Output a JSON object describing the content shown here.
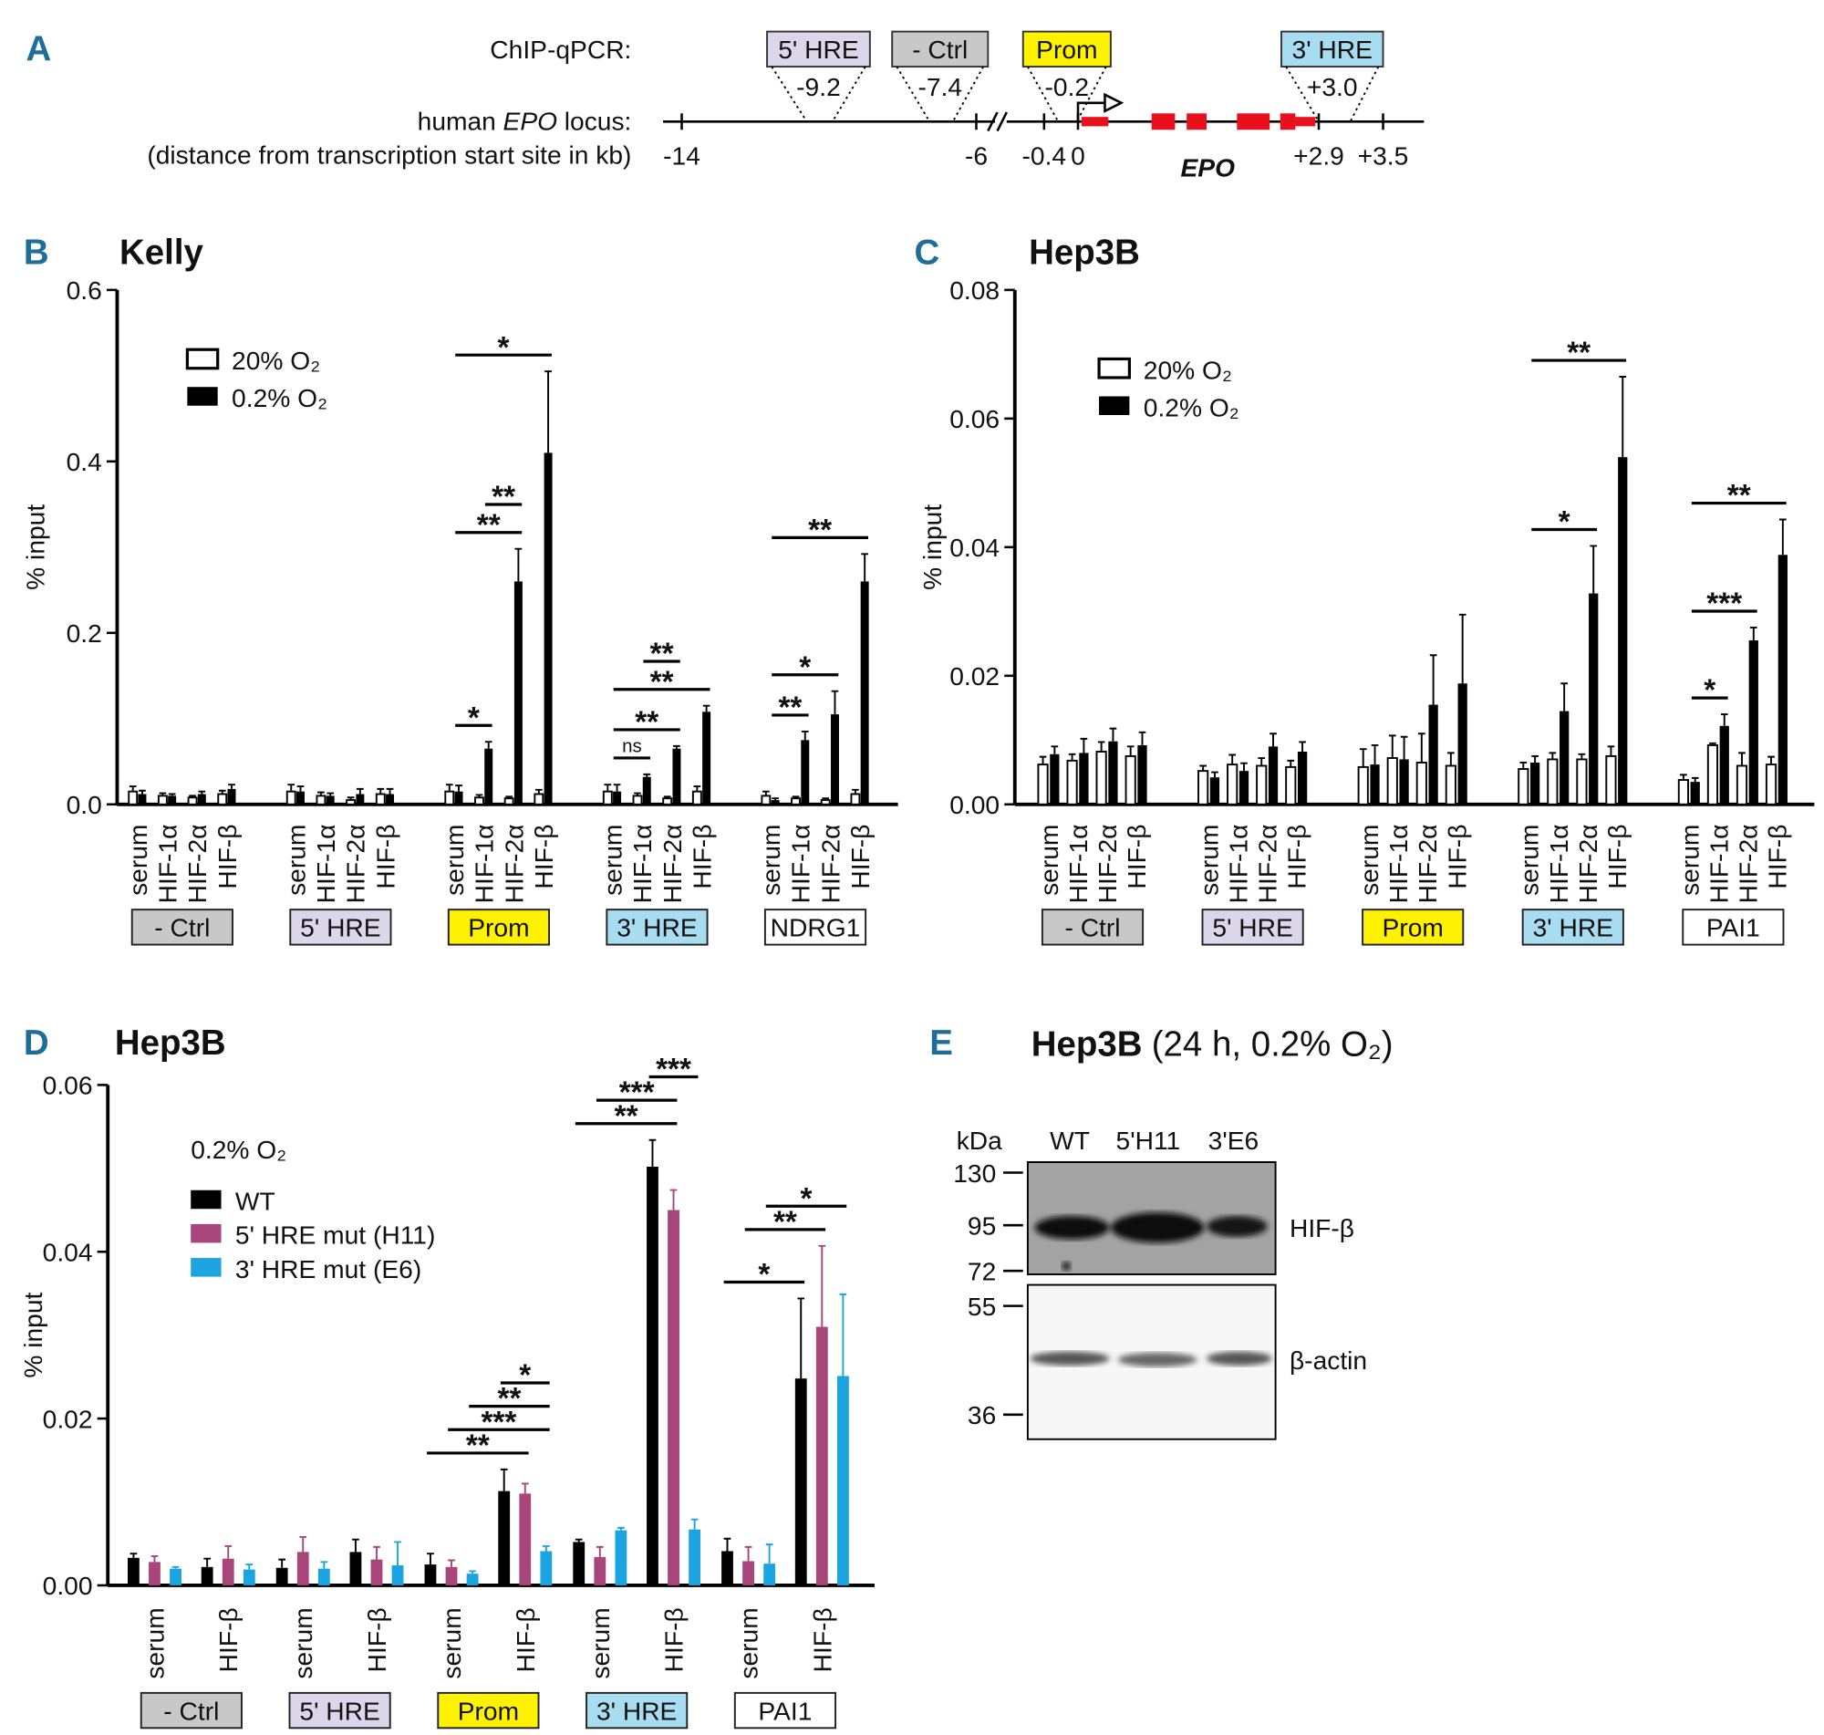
{
  "locus_diagram": {
    "panel": "A",
    "chip_label": "ChIP-qPCR:",
    "locus_label": [
      "human",
      "EPO",
      "locus:"
    ],
    "distance_label": "(distance from transcription start site in kb)",
    "gene": "EPO",
    "regions": [
      {
        "label": "5' HRE",
        "position": "-9.2",
        "color": "#dcd6ea"
      },
      {
        "label": "- Ctrl",
        "position": "-7.4",
        "color": "#c8c8c8"
      },
      {
        "label": "Prom",
        "position": "-0.2",
        "color": "#fff200"
      },
      {
        "label": "3' HRE",
        "position": "+3.0",
        "color": "#a8dcf0"
      }
    ],
    "ticks": [
      "-14",
      "-6",
      "-0.4",
      "0",
      "+2.9",
      "+3.5"
    ]
  },
  "chart_data": [
    {
      "type": "bar",
      "panel": "B",
      "title": "Kelly",
      "ylabel": "% input",
      "ylim": [
        0,
        0.6
      ],
      "yticks": [
        {
          "value": 0,
          "label": "0.0"
        },
        0.2,
        0.4,
        0.6
      ],
      "groups": [
        {
          "label": "- Ctrl",
          "color": "#c8c8c8"
        },
        {
          "label": "5' HRE",
          "color": "#dcd6ea"
        },
        {
          "label": "Prom",
          "color": "#fff200"
        },
        {
          "label": "3' HRE",
          "color": "#a8dcf0"
        },
        {
          "label": "NDRG1",
          "color": "#ffffff"
        }
      ],
      "categories": [
        "serum",
        "HIF-1α",
        "HIF-2α",
        "HIF-β",
        "serum",
        "HIF-1α",
        "HIF-2α",
        "HIF-β",
        "serum",
        "HIF-1α",
        "HIF-2α",
        "HIF-β",
        "serum",
        "HIF-1α",
        "HIF-2α",
        "HIF-β",
        "serum",
        "HIF-1α",
        "HIF-2α",
        "HIF-β"
      ],
      "series": [
        {
          "name": "20% O₂",
          "color": "#ffffff",
          "values": [
            0.015,
            0.01,
            0.008,
            0.012,
            0.015,
            0.01,
            0.005,
            0.012,
            0.015,
            0.008,
            0.007,
            0.012,
            0.015,
            0.01,
            0.007,
            0.015,
            0.01,
            0.007,
            0.005,
            0.012
          ],
          "errors": [
            0.006,
            0.003,
            0.002,
            0.004,
            0.008,
            0.004,
            0.003,
            0.006,
            0.008,
            0.003,
            0.002,
            0.005,
            0.008,
            0.003,
            0.002,
            0.006,
            0.005,
            0.002,
            0.002,
            0.005
          ]
        },
        {
          "name": "0.2% O₂",
          "color": "#000000",
          "values": [
            0.012,
            0.01,
            0.012,
            0.018,
            0.015,
            0.01,
            0.012,
            0.012,
            0.015,
            0.065,
            0.26,
            0.41,
            0.015,
            0.032,
            0.065,
            0.108,
            0.005,
            0.075,
            0.105,
            0.26
          ],
          "errors": [
            0.004,
            0.002,
            0.003,
            0.005,
            0.006,
            0.003,
            0.006,
            0.006,
            0.007,
            0.008,
            0.038,
            0.095,
            0.008,
            0.003,
            0.003,
            0.007,
            0.002,
            0.01,
            0.027,
            0.032
          ]
        }
      ],
      "significance": [
        {
          "label": "*",
          "group": 2,
          "bars": [
            1,
            3
          ]
        },
        {
          "label": "**",
          "group": 2,
          "bars": [
            1,
            5
          ]
        },
        {
          "label": "**",
          "group": 2,
          "bars": [
            3,
            5
          ]
        },
        {
          "label": "*",
          "group": 2,
          "bars": [
            1,
            7
          ]
        },
        {
          "label": "ns",
          "group": 3,
          "bars": [
            1,
            3
          ]
        },
        {
          "label": "**",
          "group": 3,
          "bars": [
            1,
            5
          ]
        },
        {
          "label": "**",
          "group": 3,
          "bars": [
            1,
            7
          ]
        },
        {
          "label": "**",
          "group": 3,
          "bars": [
            3,
            5
          ]
        },
        {
          "label": "**",
          "group": 4,
          "bars": [
            1,
            3
          ]
        },
        {
          "label": "*",
          "group": 4,
          "bars": [
            1,
            5
          ]
        },
        {
          "label": "**",
          "group": 4,
          "bars": [
            1,
            7
          ]
        }
      ]
    },
    {
      "type": "bar",
      "panel": "C",
      "title": "Hep3B",
      "ylabel": "% input",
      "ylim": [
        0,
        0.08
      ],
      "yticks": [
        {
          "value": 0,
          "label": "0.00"
        },
        0.02,
        0.04,
        0.06,
        0.08
      ],
      "groups": [
        {
          "label": "- Ctrl",
          "color": "#c8c8c8"
        },
        {
          "label": "5' HRE",
          "color": "#dcd6ea"
        },
        {
          "label": "Prom",
          "color": "#fff200"
        },
        {
          "label": "3' HRE",
          "color": "#a8dcf0"
        },
        {
          "label": "PAI1",
          "color": "#ffffff"
        }
      ],
      "categories": [
        "serum",
        "HIF-1α",
        "HIF-2α",
        "HIF-β",
        "serum",
        "HIF-1α",
        "HIF-2α",
        "HIF-β",
        "serum",
        "HIF-1α",
        "HIF-2α",
        "HIF-β",
        "serum",
        "HIF-1α",
        "HIF-2α",
        "HIF-β",
        "serum",
        "HIF-1α",
        "HIF-2α",
        "HIF-β"
      ],
      "series": [
        {
          "name": "20% O₂",
          "color": "#ffffff",
          "values": [
            0.0062,
            0.0068,
            0.0082,
            0.0075,
            0.0052,
            0.0062,
            0.006,
            0.0058,
            0.0058,
            0.0072,
            0.0065,
            0.006,
            0.0055,
            0.007,
            0.007,
            0.0075,
            0.0038,
            0.0092,
            0.006,
            0.0062
          ],
          "errors": [
            0.0012,
            0.001,
            0.0015,
            0.0015,
            0.0008,
            0.0015,
            0.0012,
            0.001,
            0.0028,
            0.0035,
            0.0045,
            0.002,
            0.001,
            0.001,
            0.0008,
            0.0015,
            0.0008,
            0.0003,
            0.002,
            0.0012
          ]
        },
        {
          "name": "0.2% O₂",
          "color": "#000000",
          "values": [
            0.0078,
            0.008,
            0.0098,
            0.0092,
            0.0042,
            0.0052,
            0.009,
            0.0082,
            0.0062,
            0.007,
            0.0155,
            0.0188,
            0.0065,
            0.0145,
            0.0328,
            0.054,
            0.0035,
            0.0122,
            0.0255,
            0.0388
          ],
          "errors": [
            0.0012,
            0.0022,
            0.002,
            0.002,
            0.0008,
            0.0012,
            0.002,
            0.0015,
            0.003,
            0.0035,
            0.0077,
            0.0107,
            0.001,
            0.0043,
            0.0074,
            0.0125,
            0.0006,
            0.0018,
            0.002,
            0.0055
          ]
        }
      ],
      "significance": [
        {
          "label": "*",
          "group": 3,
          "bars": [
            1,
            5
          ]
        },
        {
          "label": "**",
          "group": 3,
          "bars": [
            1,
            7
          ]
        },
        {
          "label": "*",
          "group": 4,
          "bars": [
            1,
            3
          ]
        },
        {
          "label": "***",
          "group": 4,
          "bars": [
            1,
            5
          ]
        },
        {
          "label": "**",
          "group": 4,
          "bars": [
            1,
            7
          ]
        }
      ]
    },
    {
      "type": "bar",
      "panel": "D",
      "title": "Hep3B",
      "ylabel": "% input",
      "legend_title": "0.2% O₂",
      "ylim": [
        0,
        0.06
      ],
      "yticks": [
        {
          "value": 0,
          "label": "0.00"
        },
        0.02,
        0.04,
        0.06
      ],
      "groups": [
        {
          "label": "- Ctrl",
          "color": "#c8c8c8"
        },
        {
          "label": "5' HRE",
          "color": "#dcd6ea"
        },
        {
          "label": "Prom",
          "color": "#fff200"
        },
        {
          "label": "3' HRE",
          "color": "#a8dcf0"
        },
        {
          "label": "PAI1",
          "color": "#ffffff"
        }
      ],
      "categories": [
        "serum",
        "HIF-β",
        "serum",
        "HIF-β",
        "serum",
        "HIF-β",
        "serum",
        "HIF-β",
        "serum",
        "HIF-β"
      ],
      "series": [
        {
          "name": "WT",
          "color": "#000000",
          "values": [
            0.0033,
            0.0022,
            0.0021,
            0.004,
            0.0025,
            0.0113,
            0.0052,
            0.0502,
            0.0041,
            0.0248
          ],
          "errors": [
            0.0005,
            0.001,
            0.001,
            0.0015,
            0.0013,
            0.0026,
            0.0003,
            0.0032,
            0.0015,
            0.0096
          ]
        },
        {
          "name": "5' HRE mut (H11)",
          "color": "#a8457a",
          "values": [
            0.0028,
            0.0032,
            0.004,
            0.0031,
            0.0022,
            0.011,
            0.0034,
            0.045,
            0.0029,
            0.031
          ],
          "errors": [
            0.0007,
            0.0015,
            0.0018,
            0.0015,
            0.0008,
            0.0012,
            0.0012,
            0.0024,
            0.0017,
            0.0097
          ]
        },
        {
          "name": "3' HRE mut (E6)",
          "color": "#1ba4e0",
          "values": [
            0.002,
            0.0019,
            0.002,
            0.0024,
            0.0014,
            0.0041,
            0.0066,
            0.0067,
            0.0026,
            0.0251
          ],
          "errors": [
            0.0002,
            0.0006,
            0.0008,
            0.0028,
            0.0003,
            0.0006,
            0.0003,
            0.0012,
            0.0023,
            0.0098
          ]
        }
      ],
      "significance": [
        {
          "label": "**",
          "group": 2,
          "bars": [
            0,
            4
          ]
        },
        {
          "label": "***",
          "group": 2,
          "bars": [
            1,
            5
          ]
        },
        {
          "label": "**",
          "group": 2,
          "bars": [
            2,
            5
          ]
        },
        {
          "label": "*",
          "group": 2,
          "bars": [
            3,
            5
          ]
        },
        {
          "label": "**",
          "group": 3,
          "bars": [
            0,
            4
          ]
        },
        {
          "label": "***",
          "group": 3,
          "bars": [
            1,
            4
          ]
        },
        {
          "label": "***",
          "group": 3,
          "bars": [
            3,
            5
          ]
        },
        {
          "label": "*",
          "group": 4,
          "bars": [
            0,
            3
          ]
        },
        {
          "label": "**",
          "group": 4,
          "bars": [
            1,
            4
          ]
        },
        {
          "label": "*",
          "group": 4,
          "bars": [
            2,
            5
          ]
        }
      ]
    }
  ],
  "western_blot": {
    "panel": "E",
    "title": "Hep3B",
    "subtitle": "(24 h, 0.2% O₂)",
    "unit": "kDa",
    "lanes": [
      "WT",
      "5'H11",
      "3'E6"
    ],
    "markers": [
      130,
      95,
      72,
      55,
      36
    ],
    "targets": [
      "HIF-β",
      "β-actin"
    ]
  }
}
